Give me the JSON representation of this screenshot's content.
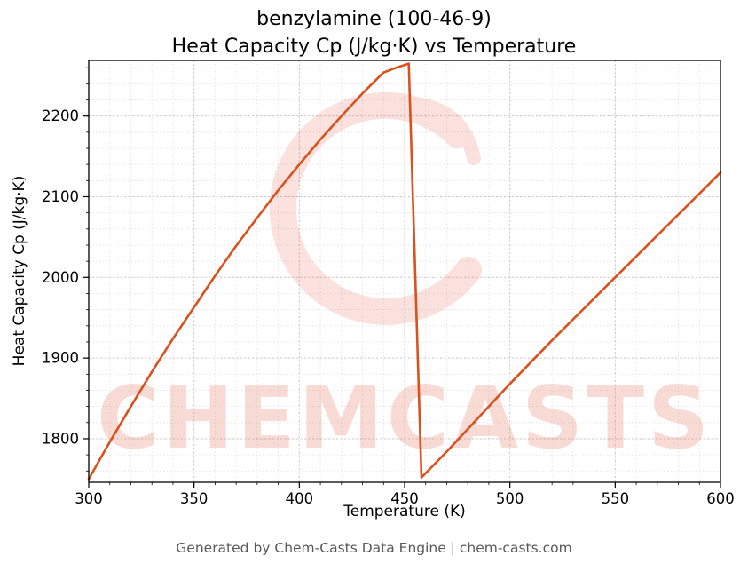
{
  "header": {
    "title_line1": "benzylamine (100-46-9)",
    "title_line2": "Heat Capacity Cp (J/kg·K) vs Temperature"
  },
  "footer": {
    "text": "Generated by Chem-Casts Data Engine | chem-casts.com"
  },
  "watermark": {
    "text": "CHEMCASTS",
    "logo_icon": "chemcasts-swirl-logo-icon",
    "color": "#e8604a",
    "text_opacity": 0.22,
    "logo_opacity": 0.18
  },
  "chart_data": {
    "type": "line",
    "title": "benzylamine (100-46-9) — Heat Capacity Cp (J/kg·K) vs Temperature",
    "xlabel": "Temperature (K)",
    "ylabel": "Heat Capacity Cp (J/kg·K)",
    "xlim": [
      300,
      600
    ],
    "ylim": [
      1746,
      2269
    ],
    "x_ticks": [
      300,
      350,
      400,
      450,
      500,
      550,
      600
    ],
    "y_ticks": [
      1800,
      1900,
      2000,
      2100,
      2200
    ],
    "x_minor_step": 10,
    "y_minor_step": 20,
    "grid": true,
    "legend": false,
    "line_color": "#d9511c",
    "line_width": 2.6,
    "series": [
      {
        "name": "Heat Capacity Cp",
        "points": [
          [
            300,
            1750
          ],
          [
            310,
            1796
          ],
          [
            320,
            1840
          ],
          [
            330,
            1883
          ],
          [
            340,
            1924
          ],
          [
            350,
            1963
          ],
          [
            360,
            2002
          ],
          [
            370,
            2039
          ],
          [
            380,
            2074
          ],
          [
            390,
            2108
          ],
          [
            400,
            2140
          ],
          [
            410,
            2171
          ],
          [
            420,
            2200
          ],
          [
            430,
            2228
          ],
          [
            440,
            2254
          ],
          [
            446,
            2260
          ],
          [
            452,
            2265
          ],
          [
            458,
            1752
          ],
          [
            470,
            1784
          ],
          [
            480,
            1812
          ],
          [
            490,
            1840
          ],
          [
            500,
            1868
          ],
          [
            510,
            1895
          ],
          [
            520,
            1922
          ],
          [
            530,
            1948
          ],
          [
            540,
            1974
          ],
          [
            550,
            2000
          ],
          [
            560,
            2026
          ],
          [
            570,
            2052
          ],
          [
            580,
            2078
          ],
          [
            590,
            2104
          ],
          [
            600,
            2130
          ]
        ]
      }
    ]
  }
}
